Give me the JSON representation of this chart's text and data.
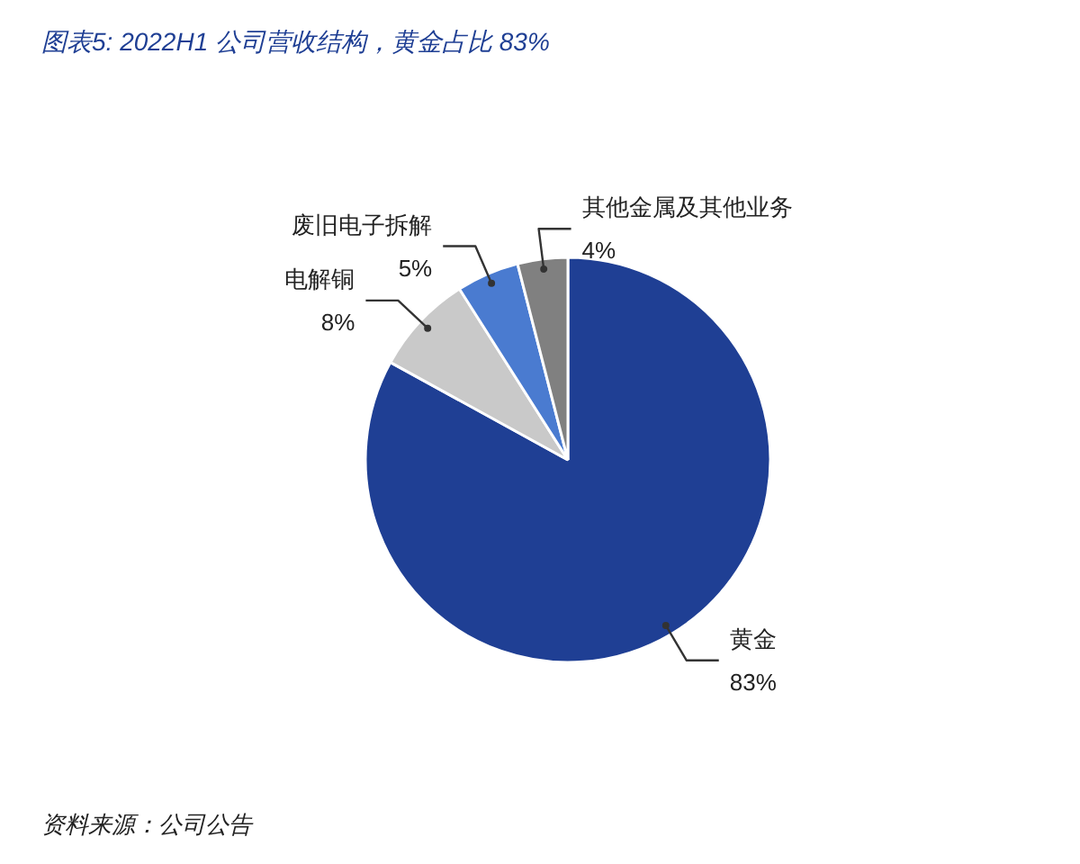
{
  "chart_data": {
    "type": "pie",
    "title": "图表5: 2022H1 公司营收结构，黄金占比 83%",
    "categories": [
      "黄金",
      "电解铜",
      "废旧电子拆解",
      "其他金属及其他业务"
    ],
    "values": [
      83,
      8,
      5,
      4
    ],
    "value_labels": [
      "83%",
      "8%",
      "5%",
      "4%"
    ],
    "colors": [
      "#1f3f94",
      "#c9c9c9",
      "#4a7bd0",
      "#808080"
    ],
    "annotations": [
      "资料来源：公司公告"
    ]
  }
}
